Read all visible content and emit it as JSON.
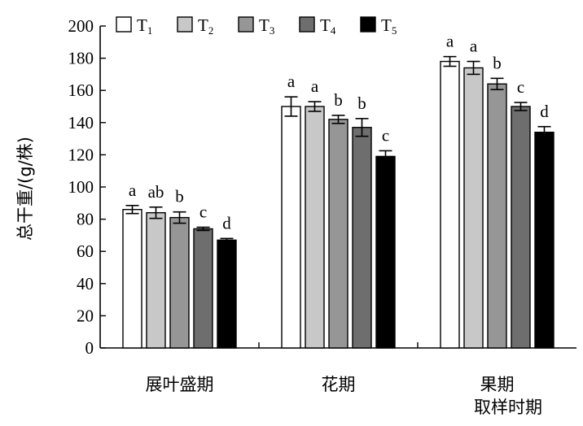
{
  "chart_data": {
    "type": "bar",
    "ylabel": "总干重/(g/株)",
    "xlabel": "取样时期",
    "categories": [
      "展叶盛期",
      "花期",
      "果期"
    ],
    "ylim": [
      0,
      200
    ],
    "yticks": [
      0,
      20,
      40,
      60,
      80,
      100,
      120,
      140,
      160,
      180,
      200
    ],
    "legend_position": "top",
    "grid": false,
    "error_bars": true,
    "series": [
      {
        "name": "T1",
        "name_base": "T",
        "name_sub": "1",
        "color": "#ffffff",
        "values": [
          86,
          150,
          178
        ],
        "errors": [
          2.5,
          6,
          3
        ],
        "labels": [
          "a",
          "a",
          "a"
        ]
      },
      {
        "name": "T2",
        "name_base": "T",
        "name_sub": "2",
        "color": "#c8c8c8",
        "values": [
          84,
          150,
          174
        ],
        "errors": [
          3.5,
          3,
          4
        ],
        "labels": [
          "ab",
          "a",
          "a"
        ]
      },
      {
        "name": "T3",
        "name_base": "T",
        "name_sub": "3",
        "color": "#969696",
        "values": [
          81,
          142,
          164
        ],
        "errors": [
          3.5,
          2.5,
          3.5
        ],
        "labels": [
          "b",
          "b",
          "b"
        ]
      },
      {
        "name": "T4",
        "name_base": "T",
        "name_sub": "4",
        "color": "#6e6e6e",
        "values": [
          74,
          137,
          150
        ],
        "errors": [
          1,
          5.5,
          2.5
        ],
        "labels": [
          "c",
          "b",
          "c"
        ]
      },
      {
        "name": "T5",
        "name_base": "T",
        "name_sub": "5",
        "color": "#000000",
        "values": [
          67,
          119,
          134
        ],
        "errors": [
          1,
          3.5,
          3.5
        ],
        "labels": [
          "d",
          "c",
          "d"
        ]
      }
    ]
  }
}
